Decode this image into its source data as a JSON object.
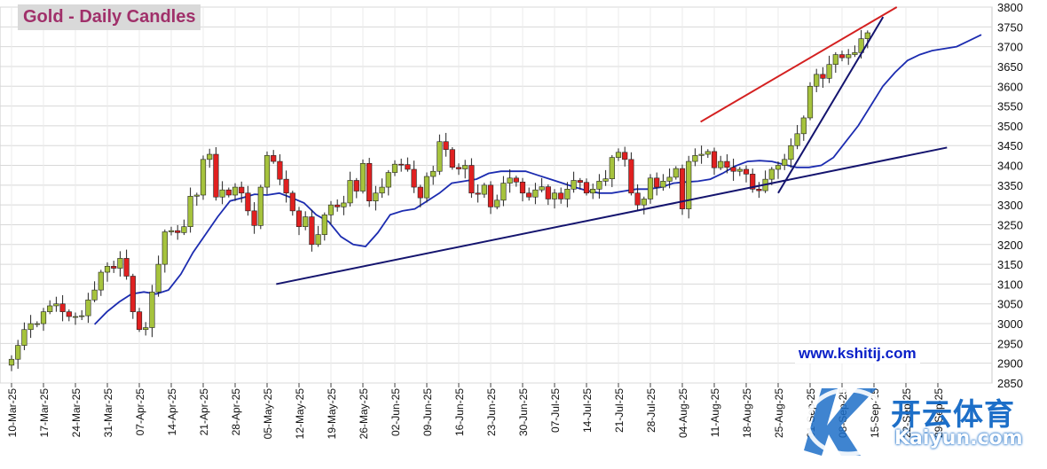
{
  "watermark": "www.kshitij.com",
  "logo": {
    "cn": "开云体育",
    "en": "Kaiyun.com"
  },
  "colors": {
    "up": "#a6c33d",
    "down": "#e02020",
    "ma": "#1c2cb0",
    "trend_red": "#d42020",
    "trend_navy": "#14146e",
    "grid": "#d8d8d8"
  },
  "chart_data": {
    "type": "candlestick",
    "title": "Gold - Daily Candles",
    "ylim": [
      2850,
      3800
    ],
    "y_ticks": [
      2850,
      2900,
      2950,
      3000,
      3050,
      3100,
      3150,
      3200,
      3250,
      3300,
      3350,
      3400,
      3450,
      3500,
      3550,
      3600,
      3650,
      3700,
      3750,
      3800
    ],
    "x_tick_labels": [
      "10-Mar-25",
      "17-Mar-25",
      "24-Mar-25",
      "31-Mar-25",
      "07-Apr-25",
      "14-Apr-25",
      "21-Apr-25",
      "28-Apr-25",
      "05-May-25",
      "12-May-25",
      "19-May-25",
      "26-May-25",
      "02-Jun-25",
      "09-Jun-25",
      "16-Jun-25",
      "23-Jun-25",
      "30-Jun-25",
      "07-Jul-25",
      "14-Jul-25",
      "21-Jul-25",
      "28-Jul-25",
      "04-Aug-25",
      "11-Aug-25",
      "18-Aug-25",
      "25-Aug-25",
      "01-Sep-25",
      "08-Sep-25",
      "15-Sep-25",
      "22-Sep-25",
      "29-Sep-25"
    ],
    "grid": true,
    "closes": [
      2895,
      2910,
      2945,
      2985,
      3000,
      3000,
      3030,
      3045,
      3050,
      3030,
      3018,
      3018,
      3020,
      3060,
      3085,
      3130,
      3145,
      3140,
      3165,
      3120,
      3030,
      2985,
      2990,
      3080,
      3150,
      3232,
      3235,
      3230,
      3245,
      3322,
      3325,
      3415,
      3428,
      3320,
      3338,
      3325,
      3345,
      3330,
      3285,
      3248,
      3345,
      3425,
      3410,
      3365,
      3330,
      3285,
      3245,
      3270,
      3200,
      3225,
      3275,
      3300,
      3295,
      3305,
      3362,
      3335,
      3405,
      3310,
      3330,
      3345,
      3382,
      3403,
      3402,
      3390,
      3345,
      3318,
      3372,
      3385,
      3460,
      3440,
      3395,
      3391,
      3400,
      3330,
      3327,
      3350,
      3295,
      3312,
      3355,
      3368,
      3358,
      3330,
      3320,
      3338,
      3346,
      3315,
      3330,
      3315,
      3340,
      3362,
      3357,
      3330,
      3340,
      3360,
      3366,
      3420,
      3433,
      3415,
      3330,
      3300,
      3315,
      3368,
      3345,
      3360,
      3370,
      3392,
      3290,
      3410,
      3425,
      3428,
      3435,
      3394,
      3410,
      3395,
      3385,
      3390,
      3378,
      3340,
      3336,
      3365,
      3390,
      3400,
      3415,
      3450,
      3480,
      3520,
      3600,
      3630,
      3620,
      3655,
      3680,
      3672,
      3680,
      3685,
      3720,
      3735
    ],
    "moving_average": [
      2998,
      3030,
      3055,
      3075,
      3080,
      3075,
      3085,
      3125,
      3180,
      3225,
      3270,
      3310,
      3318,
      3327,
      3325,
      3330,
      3318,
      3305,
      3275,
      3258,
      3220,
      3200,
      3195,
      3230,
      3275,
      3285,
      3290,
      3310,
      3330,
      3355,
      3360,
      3365,
      3380,
      3385,
      3385,
      3385,
      3375,
      3365,
      3355,
      3345,
      3336,
      3330,
      3330,
      3335,
      3340,
      3340,
      3345,
      3355,
      3358,
      3360,
      3365,
      3380,
      3398,
      3410,
      3412,
      3410,
      3402,
      3395,
      3395,
      3400,
      3420,
      3460,
      3500,
      3550,
      3600,
      3635,
      3665,
      3680,
      3690,
      3695,
      3700,
      3715,
      3730
    ],
    "trendlines": [
      {
        "color": "red",
        "from": {
          "x": "08-Aug-25",
          "y": 3510
        },
        "to": {
          "x": "20-Sep-25",
          "y": 3800
        }
      },
      {
        "color": "navy",
        "from": {
          "x": "07-May-25",
          "y": 3100
        },
        "to": {
          "x": "01-Oct-25",
          "y": 3445
        }
      },
      {
        "color": "navy",
        "from": {
          "x": "25-Aug-25",
          "y": 3330
        },
        "to": {
          "x": "17-Sep-25",
          "y": 3775
        }
      }
    ]
  }
}
